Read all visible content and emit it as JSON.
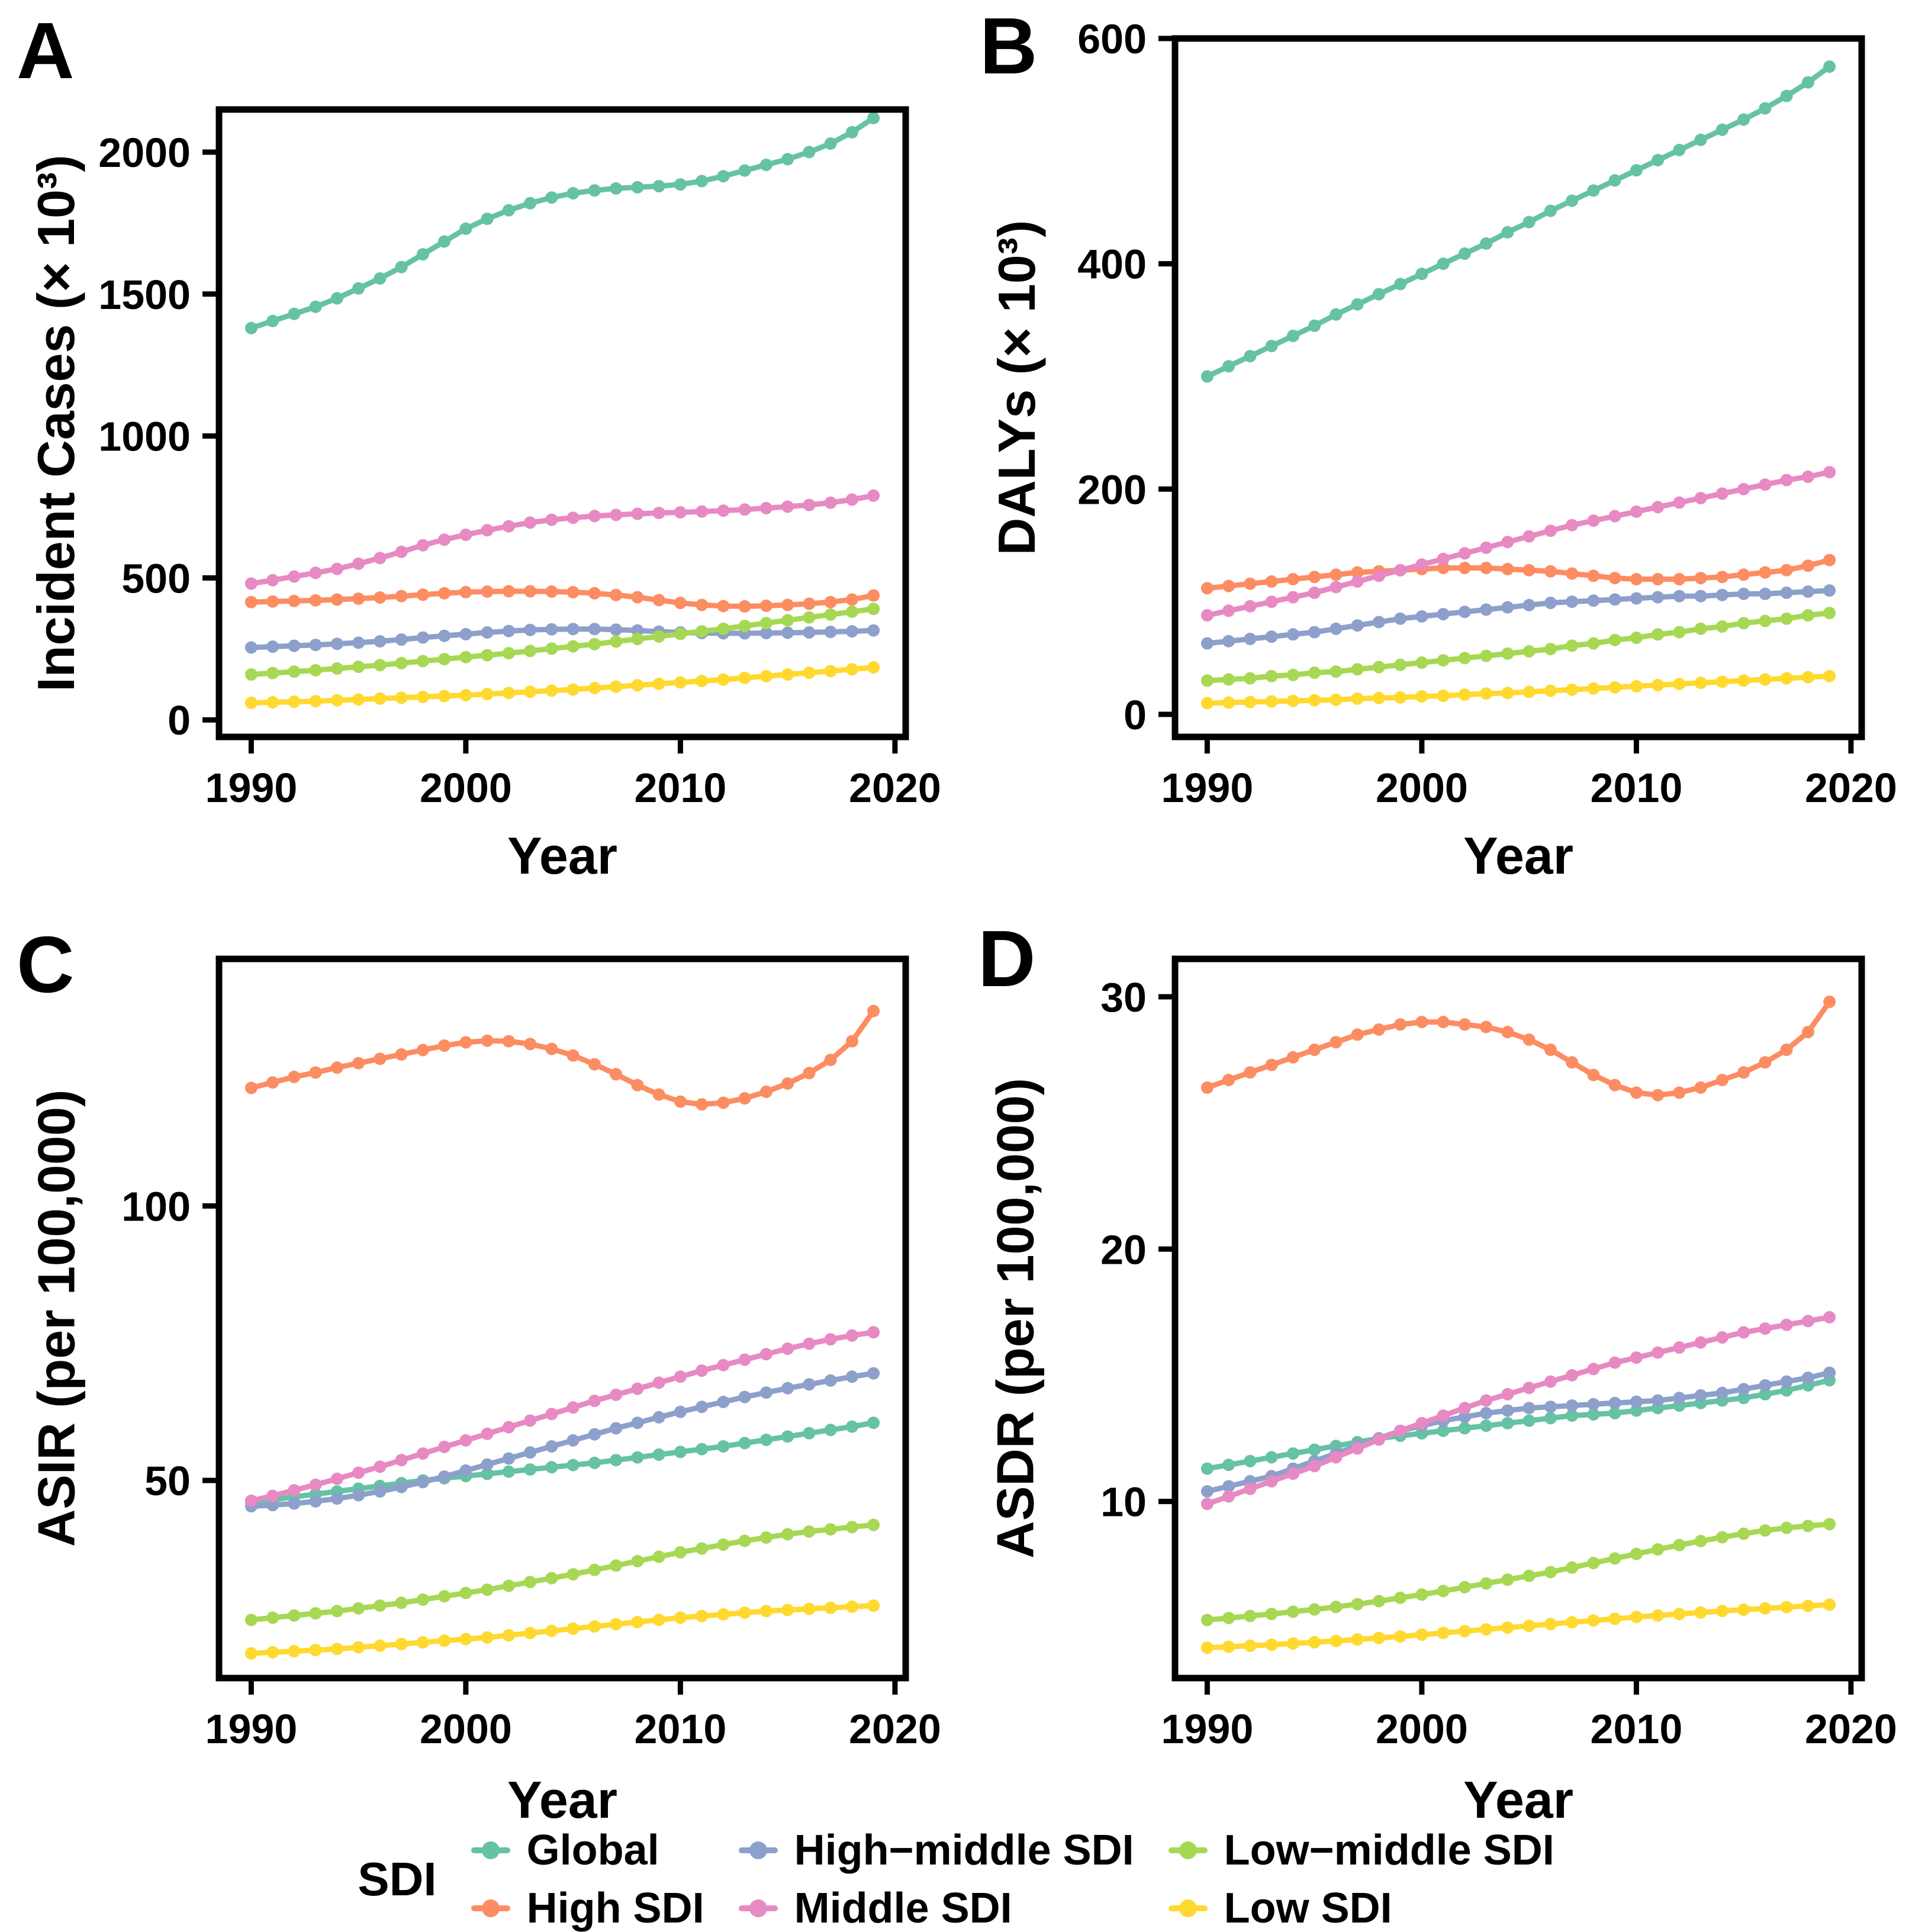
{
  "panels": [
    {
      "letter": "A",
      "ylabel": "Incident Cases (× 10³)",
      "xlabel": "Year"
    },
    {
      "letter": "B",
      "ylabel": "DALYs (× 10³)",
      "xlabel": "Year"
    },
    {
      "letter": "C",
      "ylabel": "ASIR (per 100,000)",
      "xlabel": "Year"
    },
    {
      "letter": "D",
      "ylabel": "ASDR (per 100,000)",
      "xlabel": "Year"
    }
  ],
  "legend": {
    "title": "SDI",
    "items": [
      {
        "label": "Global",
        "color": "#66C2A5"
      },
      {
        "label": "High SDI",
        "color": "#FC8D62"
      },
      {
        "label": "High−middle SDI",
        "color": "#8DA0CB"
      },
      {
        "label": "Middle SDI",
        "color": "#E78AC3"
      },
      {
        "label": "Low−middle SDI",
        "color": "#A6D854"
      },
      {
        "label": "Low SDI",
        "color": "#FFD92F"
      }
    ]
  },
  "colors": {
    "global": "#66C2A5",
    "high_sdi": "#FC8D62",
    "high_middle_sdi": "#8DA0CB",
    "middle_sdi": "#E78AC3",
    "low_middle_sdi": "#A6D854",
    "low_sdi": "#FFD92F",
    "axis": "#000000"
  },
  "chart_data": [
    {
      "type": "line",
      "title": "A",
      "ylabel": "Incident Cases (× 10³)",
      "xlabel": "Year",
      "grid": false,
      "xlim": [
        1988.5,
        2020.5
      ],
      "ylim": [
        -60,
        2150
      ],
      "xticks": [
        1990,
        2000,
        2010,
        2020
      ],
      "yticks": [
        0,
        500,
        1000,
        1500,
        2000
      ],
      "years": [
        1990,
        1991,
        1992,
        1993,
        1994,
        1995,
        1996,
        1997,
        1998,
        1999,
        2000,
        2001,
        2002,
        2003,
        2004,
        2005,
        2006,
        2007,
        2008,
        2009,
        2010,
        2011,
        2012,
        2013,
        2014,
        2015,
        2016,
        2017,
        2018,
        2019
      ],
      "series": [
        {
          "name": "Global",
          "color": "#66C2A5",
          "values": [
            1380,
            1405,
            1430,
            1455,
            1485,
            1520,
            1555,
            1595,
            1640,
            1685,
            1730,
            1765,
            1795,
            1820,
            1840,
            1855,
            1865,
            1872,
            1876,
            1880,
            1886,
            1898,
            1915,
            1935,
            1955,
            1975,
            2000,
            2030,
            2070,
            2120
          ]
        },
        {
          "name": "High SDI",
          "color": "#FC8D62",
          "values": [
            415,
            417,
            419,
            421,
            424,
            427,
            431,
            436,
            441,
            446,
            450,
            452,
            453,
            453,
            452,
            450,
            446,
            440,
            432,
            422,
            412,
            405,
            401,
            400,
            402,
            405,
            409,
            415,
            424,
            438
          ]
        },
        {
          "name": "High−middle SDI",
          "color": "#8DA0CB",
          "values": [
            255,
            258,
            261,
            264,
            268,
            272,
            277,
            283,
            290,
            296,
            302,
            308,
            313,
            317,
            319,
            320,
            320,
            318,
            315,
            311,
            308,
            306,
            305,
            305,
            306,
            307,
            308,
            310,
            312,
            315
          ]
        },
        {
          "name": "Middle SDI",
          "color": "#E78AC3",
          "values": [
            480,
            492,
            505,
            518,
            532,
            550,
            570,
            592,
            615,
            635,
            652,
            668,
            682,
            695,
            705,
            712,
            718,
            722,
            726,
            729,
            731,
            734,
            737,
            741,
            746,
            751,
            757,
            765,
            776,
            790
          ]
        },
        {
          "name": "Low−middle SDI",
          "color": "#A6D854",
          "values": [
            160,
            165,
            170,
            175,
            181,
            187,
            193,
            200,
            207,
            214,
            221,
            228,
            235,
            243,
            251,
            259,
            267,
            276,
            285,
            294,
            303,
            312,
            321,
            331,
            341,
            351,
            361,
            371,
            381,
            391
          ]
        },
        {
          "name": "Low SDI",
          "color": "#FFD92F",
          "values": [
            60,
            62,
            64,
            66,
            69,
            72,
            75,
            78,
            81,
            84,
            87,
            91,
            95,
            99,
            103,
            107,
            112,
            117,
            122,
            127,
            132,
            137,
            142,
            148,
            154,
            160,
            166,
            172,
            178,
            185
          ]
        }
      ]
    },
    {
      "type": "line",
      "title": "B",
      "ylabel": "DALYs (× 10³)",
      "xlabel": "Year",
      "grid": false,
      "xlim": [
        1988.5,
        2020.5
      ],
      "ylim": [
        -20,
        600
      ],
      "xticks": [
        1990,
        2000,
        2010,
        2020
      ],
      "yticks": [
        0,
        200,
        400,
        600
      ],
      "years": [
        1990,
        1991,
        1992,
        1993,
        1994,
        1995,
        1996,
        1997,
        1998,
        1999,
        2000,
        2001,
        2002,
        2003,
        2004,
        2005,
        2006,
        2007,
        2008,
        2009,
        2010,
        2011,
        2012,
        2013,
        2014,
        2015,
        2016,
        2017,
        2018,
        2019
      ],
      "series": [
        {
          "name": "Global",
          "color": "#66C2A5",
          "values": [
            300,
            309,
            318,
            327,
            336,
            345,
            355,
            364,
            373,
            382,
            391,
            400,
            409,
            418,
            428,
            437,
            447,
            456,
            465,
            474,
            483,
            492,
            501,
            510,
            519,
            528,
            538,
            549,
            561,
            575
          ]
        },
        {
          "name": "High SDI",
          "color": "#FC8D62",
          "values": [
            112,
            114,
            116,
            118,
            120,
            122,
            124,
            126,
            127,
            128,
            129,
            130,
            130,
            130,
            129,
            128,
            127,
            125,
            123,
            121,
            120,
            120,
            120,
            121,
            122,
            124,
            126,
            128,
            132,
            137
          ]
        },
        {
          "name": "High−middle SDI",
          "color": "#8DA0CB",
          "values": [
            63,
            65,
            67,
            69,
            71,
            73,
            76,
            79,
            82,
            85,
            87,
            89,
            91,
            93,
            95,
            97,
            99,
            100,
            101,
            102,
            103,
            104,
            105,
            105,
            106,
            107,
            107,
            108,
            109,
            110
          ]
        },
        {
          "name": "Middle SDI",
          "color": "#E78AC3",
          "values": [
            88,
            92,
            96,
            100,
            104,
            108,
            113,
            118,
            123,
            128,
            133,
            138,
            143,
            148,
            153,
            158,
            163,
            168,
            172,
            176,
            180,
            184,
            188,
            192,
            196,
            200,
            204,
            208,
            211,
            215
          ]
        },
        {
          "name": "Low−middle SDI",
          "color": "#A6D854",
          "values": [
            30,
            31,
            32,
            34,
            35,
            37,
            38,
            40,
            42,
            44,
            46,
            48,
            50,
            52,
            54,
            56,
            58,
            61,
            63,
            66,
            68,
            71,
            73,
            76,
            78,
            81,
            83,
            85,
            88,
            90
          ]
        },
        {
          "name": "Low SDI",
          "color": "#FFD92F",
          "values": [
            10,
            10.5,
            11,
            11.5,
            12,
            12.5,
            13,
            14,
            14.5,
            15,
            16,
            16.5,
            17.5,
            18.5,
            19,
            20,
            21,
            22,
            23,
            24,
            25,
            26,
            27,
            28,
            29,
            30,
            31,
            32,
            33,
            34
          ]
        }
      ]
    },
    {
      "type": "line",
      "title": "C",
      "ylabel": "ASIR (per 100,000)",
      "xlabel": "Year",
      "grid": false,
      "xlim": [
        1988.5,
        2020.5
      ],
      "ylim": [
        14,
        145
      ],
      "xticks": [
        1990,
        2000,
        2010,
        2020
      ],
      "yticks": [
        50,
        100
      ],
      "years": [
        1990,
        1991,
        1992,
        1993,
        1994,
        1995,
        1996,
        1997,
        1998,
        1999,
        2000,
        2001,
        2002,
        2003,
        2004,
        2005,
        2006,
        2007,
        2008,
        2009,
        2010,
        2011,
        2012,
        2013,
        2014,
        2015,
        2016,
        2017,
        2018,
        2019
      ],
      "series": [
        {
          "name": "Global",
          "color": "#66C2A5",
          "values": [
            46.0,
            46.5,
            47.0,
            47.5,
            48.0,
            48.5,
            49.0,
            49.5,
            50.0,
            50.4,
            50.8,
            51.2,
            51.6,
            52.0,
            52.4,
            52.8,
            53.2,
            53.7,
            54.2,
            54.7,
            55.2,
            55.7,
            56.2,
            56.8,
            57.4,
            58.0,
            58.6,
            59.2,
            59.8,
            60.5
          ]
        },
        {
          "name": "High SDI",
          "color": "#FC8D62",
          "values": [
            121.5,
            122.5,
            123.5,
            124.3,
            125.2,
            126.0,
            126.8,
            127.6,
            128.4,
            129.2,
            129.8,
            130.1,
            130.0,
            129.5,
            128.6,
            127.4,
            125.8,
            124.0,
            122.0,
            120.3,
            119.0,
            118.5,
            118.8,
            119.6,
            120.8,
            122.3,
            124.2,
            126.6,
            130.0,
            135.5
          ]
        },
        {
          "name": "High−middle SDI",
          "color": "#8DA0CB",
          "values": [
            45.3,
            45.5,
            45.8,
            46.2,
            46.7,
            47.3,
            48.0,
            48.8,
            49.7,
            50.7,
            51.8,
            52.9,
            54.0,
            55.1,
            56.2,
            57.3,
            58.4,
            59.5,
            60.5,
            61.5,
            62.5,
            63.4,
            64.3,
            65.2,
            66.0,
            66.8,
            67.5,
            68.2,
            68.9,
            69.5
          ]
        },
        {
          "name": "Middle SDI",
          "color": "#E78AC3",
          "values": [
            46.3,
            47.2,
            48.2,
            49.2,
            50.3,
            51.4,
            52.5,
            53.7,
            54.9,
            56.1,
            57.3,
            58.5,
            59.7,
            60.9,
            62.1,
            63.3,
            64.5,
            65.6,
            66.7,
            67.8,
            68.9,
            70.0,
            71.0,
            72.0,
            73.0,
            74.0,
            74.9,
            75.7,
            76.4,
            77.0
          ]
        },
        {
          "name": "Low−middle SDI",
          "color": "#A6D854",
          "values": [
            24.6,
            25.0,
            25.4,
            25.8,
            26.2,
            26.7,
            27.2,
            27.7,
            28.3,
            28.9,
            29.5,
            30.1,
            30.8,
            31.5,
            32.2,
            32.9,
            33.7,
            34.5,
            35.3,
            36.1,
            36.9,
            37.6,
            38.3,
            39.0,
            39.6,
            40.2,
            40.7,
            41.1,
            41.5,
            41.9
          ]
        },
        {
          "name": "Low SDI",
          "color": "#FFD92F",
          "values": [
            18.5,
            18.7,
            18.9,
            19.1,
            19.3,
            19.6,
            19.9,
            20.2,
            20.5,
            20.8,
            21.1,
            21.4,
            21.8,
            22.2,
            22.6,
            23.0,
            23.4,
            23.8,
            24.2,
            24.6,
            25.0,
            25.3,
            25.6,
            25.9,
            26.2,
            26.4,
            26.6,
            26.8,
            27.0,
            27.2
          ]
        }
      ]
    },
    {
      "type": "line",
      "title": "D",
      "ylabel": "ASDR (per 100,000)",
      "xlabel": "Year",
      "grid": false,
      "xlim": [
        1988.5,
        2020.5
      ],
      "ylim": [
        3,
        31.5
      ],
      "xticks": [
        1990,
        2000,
        2010,
        2020
      ],
      "yticks": [
        10,
        20,
        30
      ],
      "years": [
        1990,
        1991,
        1992,
        1993,
        1994,
        1995,
        1996,
        1997,
        1998,
        1999,
        2000,
        2001,
        2002,
        2003,
        2004,
        2005,
        2006,
        2007,
        2008,
        2009,
        2010,
        2011,
        2012,
        2013,
        2014,
        2015,
        2016,
        2017,
        2018,
        2019
      ],
      "series": [
        {
          "name": "Global",
          "color": "#66C2A5",
          "values": [
            11.3,
            11.45,
            11.6,
            11.75,
            11.9,
            12.05,
            12.2,
            12.35,
            12.5,
            12.6,
            12.7,
            12.8,
            12.9,
            13.0,
            13.1,
            13.2,
            13.3,
            13.4,
            13.45,
            13.5,
            13.6,
            13.7,
            13.8,
            13.9,
            14.0,
            14.1,
            14.25,
            14.4,
            14.6,
            14.8
          ]
        },
        {
          "name": "High SDI",
          "color": "#FC8D62",
          "values": [
            26.4,
            26.7,
            27.0,
            27.3,
            27.6,
            27.9,
            28.2,
            28.5,
            28.7,
            28.9,
            29.0,
            29.0,
            28.9,
            28.8,
            28.6,
            28.3,
            27.9,
            27.4,
            26.9,
            26.5,
            26.2,
            26.1,
            26.2,
            26.4,
            26.7,
            27.0,
            27.4,
            27.9,
            28.6,
            29.8
          ]
        },
        {
          "name": "High−middle SDI",
          "color": "#8DA0CB",
          "values": [
            10.4,
            10.6,
            10.8,
            11.0,
            11.3,
            11.6,
            11.9,
            12.2,
            12.5,
            12.8,
            13.0,
            13.2,
            13.35,
            13.5,
            13.6,
            13.7,
            13.75,
            13.8,
            13.85,
            13.9,
            13.95,
            14.0,
            14.1,
            14.2,
            14.3,
            14.45,
            14.6,
            14.75,
            14.9,
            15.1
          ]
        },
        {
          "name": "Middle SDI",
          "color": "#E78AC3",
          "values": [
            9.9,
            10.2,
            10.5,
            10.8,
            11.1,
            11.4,
            11.75,
            12.1,
            12.45,
            12.8,
            13.1,
            13.4,
            13.7,
            14.0,
            14.25,
            14.5,
            14.75,
            15.0,
            15.25,
            15.5,
            15.7,
            15.9,
            16.1,
            16.3,
            16.5,
            16.7,
            16.85,
            17.0,
            17.15,
            17.3
          ]
        },
        {
          "name": "Low−middle SDI",
          "color": "#A6D854",
          "values": [
            5.3,
            5.38,
            5.46,
            5.54,
            5.63,
            5.72,
            5.82,
            5.93,
            6.05,
            6.18,
            6.31,
            6.45,
            6.6,
            6.75,
            6.9,
            7.05,
            7.2,
            7.38,
            7.56,
            7.74,
            7.92,
            8.1,
            8.27,
            8.43,
            8.58,
            8.72,
            8.85,
            8.95,
            9.03,
            9.1
          ]
        },
        {
          "name": "Low SDI",
          "color": "#FFD92F",
          "values": [
            4.2,
            4.24,
            4.28,
            4.32,
            4.37,
            4.42,
            4.47,
            4.53,
            4.59,
            4.65,
            4.72,
            4.79,
            4.86,
            4.93,
            5.0,
            5.07,
            5.14,
            5.21,
            5.28,
            5.35,
            5.42,
            5.48,
            5.54,
            5.6,
            5.66,
            5.71,
            5.76,
            5.81,
            5.86,
            5.91
          ]
        }
      ]
    }
  ]
}
